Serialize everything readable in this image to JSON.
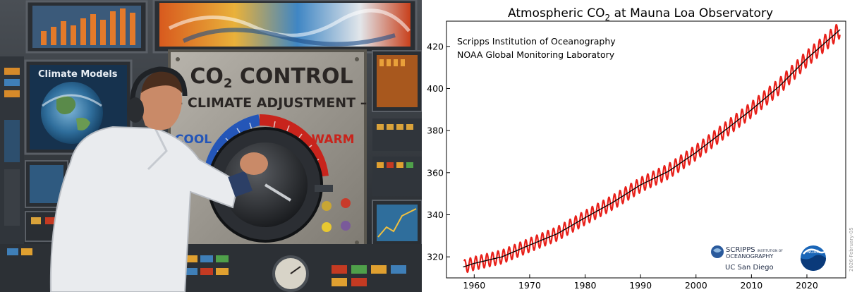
{
  "illustration": {
    "panel_title": "CO",
    "panel_title_sub": "2",
    "panel_title_rest": " CONTROL",
    "panel_subtitle": "– CLIMATE ADJUSTMENT –",
    "dial_left_label": "COOL",
    "dial_right_label": "WARM",
    "screen_label": "Climate Models",
    "colors": {
      "cool": "#2456b8",
      "warm": "#c8241c",
      "panel": "#9a9790",
      "frame": "#3a3f45"
    }
  },
  "chart_data": {
    "type": "line",
    "title_main": "Atmospheric CO",
    "title_sub": "2",
    "title_rest": " at Mauna Loa Observatory",
    "annotations": [
      "Scripps Institution of Oceanography",
      "NOAA Global Monitoring Laboratory"
    ],
    "date_label": "2026-February-05",
    "logos": {
      "scripps": "SCRIPPS",
      "scripps_small": "INSTITUTION OF",
      "scripps_line2": "OCEANOGRAPHY",
      "ucsd": "UC San Diego",
      "noaa": "NOAA"
    },
    "xlim": [
      1955,
      2027
    ],
    "ylim": [
      310,
      432
    ],
    "xticks": [
      1960,
      1970,
      1980,
      1990,
      2000,
      2010,
      2020
    ],
    "yticks": [
      320,
      340,
      360,
      380,
      400,
      420
    ],
    "series": [
      {
        "kind": "monthly",
        "color": "#e8201a"
      },
      {
        "kind": "trend",
        "color": "#000000"
      }
    ],
    "trend": {
      "x": [
        1958,
        1960,
        1965,
        1970,
        1975,
        1980,
        1985,
        1990,
        1995,
        2000,
        2005,
        2010,
        2015,
        2020,
        2026
      ],
      "y": [
        315.2,
        316.9,
        320.0,
        325.6,
        331.0,
        338.6,
        345.9,
        354.2,
        360.6,
        369.6,
        379.7,
        389.9,
        401.0,
        414.2,
        428.0
      ]
    },
    "seasonal_amplitude": 3.2
  }
}
